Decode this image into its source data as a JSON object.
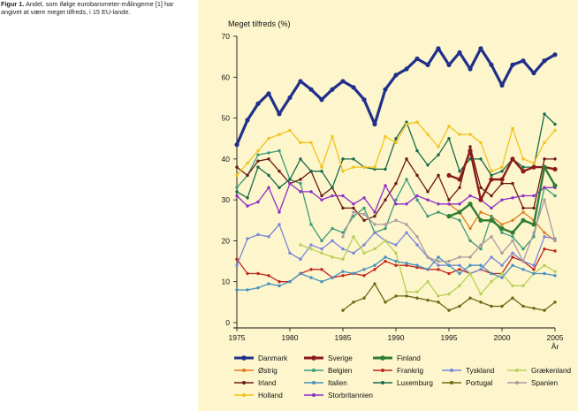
{
  "caption": {
    "label": "Figur 1.",
    "text": "Andel, som ifølge eurobarometer-målingerne [1] har angivet at være meget tilfreds, i 15 EU-lande."
  },
  "chart_data": {
    "type": "line",
    "ylabel": "Meget tilfreds (%)",
    "xlabel": "År",
    "ylim": [
      0,
      70
    ],
    "xlim": [
      1975,
      2005
    ],
    "yticks": [
      0,
      10,
      20,
      30,
      40,
      50,
      60,
      70
    ],
    "xticks": [
      1975,
      1980,
      1985,
      1990,
      1995,
      2000,
      2005
    ],
    "grid": false,
    "legend_position": "bottom",
    "series": [
      {
        "name": "Danmark",
        "color": "#1f2f8a",
        "width": 3.2,
        "x": [
          1975,
          1976,
          1977,
          1978,
          1979,
          1980,
          1981,
          1982,
          1983,
          1984,
          1985,
          1986,
          1987,
          1988,
          1989,
          1990,
          1991,
          1992,
          1993,
          1994,
          1995,
          1996,
          1997,
          1998,
          1999,
          2000,
          2001,
          2002,
          2003,
          2004,
          2005
        ],
        "values": [
          43.5,
          49.5,
          53.5,
          56,
          51,
          55,
          59,
          57,
          54.5,
          57,
          59,
          57.5,
          54.5,
          48.5,
          57,
          60.5,
          62,
          64.5,
          63,
          67,
          63,
          66,
          62,
          67,
          63,
          58,
          63,
          64,
          61,
          64,
          65.5
        ]
      },
      {
        "name": "Sverige",
        "color": "#8b1a1a",
        "width": 2.4,
        "x": [
          1995,
          1996,
          1997,
          1998,
          1999,
          2000,
          2001,
          2002,
          2003,
          2004,
          2005
        ],
        "values": [
          36,
          35,
          42,
          30,
          35,
          35,
          40,
          37,
          38,
          38,
          37.5
        ]
      },
      {
        "name": "Finland",
        "color": "#2e7d32",
        "width": 2.4,
        "x": [
          1995,
          1996,
          1997,
          1998,
          1999,
          2000,
          2001,
          2002,
          2003,
          2004,
          2005
        ],
        "values": [
          26,
          27,
          29,
          25,
          25,
          23,
          22,
          25,
          24,
          38,
          33.5
        ]
      },
      {
        "name": "Østrig",
        "color": "#e07b1f",
        "width": 1.3,
        "x": [
          1995,
          1996,
          1997,
          1998,
          1999,
          2000,
          2001,
          2002,
          2003,
          2004,
          2005
        ],
        "values": [
          29,
          27,
          23,
          27,
          26,
          24,
          25,
          27,
          25,
          22,
          20
        ]
      },
      {
        "name": "Belgien",
        "color": "#3e9a7a",
        "width": 1.3,
        "x": [
          1975,
          1976,
          1977,
          1978,
          1979,
          1980,
          1981,
          1982,
          1983,
          1984,
          1985,
          1986,
          1987,
          1988,
          1989,
          1990,
          1991,
          1992,
          1993,
          1994,
          1995,
          1996,
          1997,
          1998,
          1999,
          2000,
          2001,
          2002,
          2003,
          2004,
          2005
        ],
        "values": [
          33,
          36,
          41,
          41.5,
          42,
          35,
          34,
          24,
          20,
          23,
          22,
          26,
          28,
          22,
          23,
          30,
          35,
          30,
          26,
          27,
          26,
          25,
          20,
          18,
          26,
          22,
          21,
          18,
          21,
          33,
          31
        ]
      },
      {
        "name": "Frankrig",
        "color": "#c4271f",
        "width": 1.3,
        "x": [
          1975,
          1976,
          1977,
          1978,
          1979,
          1980,
          1981,
          1982,
          1983,
          1984,
          1985,
          1986,
          1987,
          1988,
          1989,
          1990,
          1991,
          1992,
          1993,
          1994,
          1995,
          1996,
          1997,
          1998,
          1999,
          2000,
          2001,
          2002,
          2003,
          2004,
          2005
        ],
        "values": [
          15.5,
          12,
          12,
          11.5,
          10,
          10,
          12,
          13,
          13,
          11,
          11.5,
          12,
          11.5,
          13,
          15,
          14,
          14,
          13.5,
          13,
          13,
          12,
          13,
          12,
          13,
          12,
          12,
          16,
          15,
          13,
          18,
          17.5
        ]
      },
      {
        "name": "Tyskland",
        "color": "#7b86d8",
        "width": 1.3,
        "x": [
          1975,
          1976,
          1977,
          1978,
          1979,
          1980,
          1981,
          1982,
          1983,
          1984,
          1985,
          1986,
          1987,
          1988,
          1989,
          1990,
          1991,
          1992,
          1993,
          1994,
          1995,
          1996,
          1997,
          1998,
          1999,
          2000,
          2001,
          2002,
          2003,
          2004,
          2005
        ],
        "values": [
          14,
          20.5,
          21.5,
          21,
          24,
          17,
          15.5,
          19,
          18,
          20,
          18,
          17,
          19,
          22,
          20,
          19,
          22,
          19,
          16,
          14,
          14,
          14,
          12,
          13,
          16,
          14,
          17,
          15,
          14,
          21,
          20.5
        ]
      },
      {
        "name": "Grækenland",
        "color": "#b9cf58",
        "width": 1.3,
        "x": [
          1981,
          1982,
          1983,
          1984,
          1985,
          1986,
          1987,
          1988,
          1989,
          1990,
          1991,
          1992,
          1993,
          1994,
          1995,
          1996,
          1997,
          1998,
          1999,
          2000,
          2001,
          2002,
          2003,
          2004,
          2005
        ],
        "values": [
          19,
          18,
          17,
          16,
          15.5,
          21,
          17,
          18,
          20,
          17,
          7.5,
          7.5,
          10,
          6.5,
          7,
          9,
          12,
          7,
          10,
          12,
          9,
          9,
          12,
          14,
          12.5
        ]
      },
      {
        "name": "Irland",
        "color": "#6a1a14",
        "width": 1.3,
        "x": [
          1975,
          1976,
          1977,
          1978,
          1979,
          1980,
          1981,
          1982,
          1983,
          1984,
          1985,
          1986,
          1987,
          1988,
          1989,
          1990,
          1991,
          1992,
          1993,
          1994,
          1995,
          1996,
          1997,
          1998,
          1999,
          2000,
          2001,
          2002,
          2003,
          2004,
          2005
        ],
        "values": [
          38,
          36,
          39.5,
          40,
          37,
          34,
          35,
          37,
          31,
          33,
          28,
          28,
          25,
          26,
          30,
          34,
          40,
          36,
          32,
          36,
          30,
          33,
          43,
          33,
          31,
          34,
          34,
          28,
          28,
          40,
          40
        ]
      },
      {
        "name": "Italien",
        "color": "#4a90c0",
        "width": 1.3,
        "x": [
          1975,
          1976,
          1977,
          1978,
          1979,
          1980,
          1981,
          1982,
          1983,
          1984,
          1985,
          1986,
          1987,
          1988,
          1989,
          1990,
          1991,
          1992,
          1993,
          1994,
          1995,
          1996,
          1997,
          1998,
          1999,
          2000,
          2001,
          2002,
          2003,
          2004,
          2005
        ],
        "values": [
          8,
          8,
          8.5,
          9.5,
          9,
          10,
          12,
          11,
          10,
          11,
          12.5,
          12,
          13,
          14,
          16,
          15,
          14.5,
          14,
          13,
          16,
          14,
          12,
          14,
          14,
          12,
          11,
          14,
          13,
          12,
          12,
          11.5
        ]
      },
      {
        "name": "Luxemburg",
        "color": "#176a4a",
        "width": 1.3,
        "x": [
          1975,
          1976,
          1977,
          1978,
          1979,
          1980,
          1981,
          1982,
          1983,
          1984,
          1985,
          1986,
          1987,
          1988,
          1989,
          1990,
          1991,
          1992,
          1993,
          1994,
          1995,
          1996,
          1997,
          1998,
          1999,
          2000,
          2001,
          2002,
          2003,
          2004,
          2005
        ],
        "values": [
          32,
          30.5,
          38,
          36,
          33,
          35,
          40,
          37,
          37,
          33,
          40,
          40,
          38,
          37.5,
          37.5,
          45,
          49,
          42,
          38.5,
          41,
          45,
          37,
          40,
          40,
          36,
          37,
          40,
          38,
          38,
          51,
          48.5
        ]
      },
      {
        "name": "Portugal",
        "color": "#6b6b12",
        "width": 1.3,
        "x": [
          1985,
          1986,
          1987,
          1988,
          1989,
          1990,
          1991,
          1992,
          1993,
          1994,
          1995,
          1996,
          1997,
          1998,
          1999,
          2000,
          2001,
          2002,
          2003,
          2004,
          2005
        ],
        "values": [
          3,
          5,
          6,
          9.5,
          5,
          6.5,
          6.5,
          6,
          5.5,
          5,
          3,
          4,
          6,
          5,
          4,
          4,
          6,
          4,
          3.5,
          3,
          5
        ]
      },
      {
        "name": "Spanien",
        "color": "#ad9a9e",
        "width": 1.3,
        "x": [
          1985,
          1986,
          1987,
          1988,
          1989,
          1990,
          1991,
          1992,
          1993,
          1994,
          1995,
          1996,
          1997,
          1998,
          1999,
          2000,
          2001,
          2002,
          2003,
          2004,
          2005
        ],
        "values": [
          21,
          27,
          26.5,
          24,
          24,
          25,
          24,
          21,
          16,
          15,
          15,
          16,
          16,
          19,
          21,
          17,
          20,
          15,
          22,
          30,
          20
        ]
      },
      {
        "name": "Holland",
        "color": "#f2c21d",
        "width": 1.3,
        "x": [
          1975,
          1976,
          1977,
          1978,
          1979,
          1980,
          1981,
          1982,
          1983,
          1984,
          1985,
          1986,
          1987,
          1988,
          1989,
          1990,
          1991,
          1992,
          1993,
          1994,
          1995,
          1996,
          1997,
          1998,
          1999,
          2000,
          2001,
          2002,
          2003,
          2004,
          2005
        ],
        "values": [
          36,
          39,
          42,
          45,
          46,
          47,
          44,
          44,
          38,
          45.5,
          37,
          38,
          38,
          38,
          45.5,
          44,
          48.5,
          49,
          46,
          43,
          48,
          46,
          46,
          44,
          37,
          38,
          47.5,
          40,
          39,
          44,
          47
        ]
      },
      {
        "name": "Storbritannien",
        "color": "#8e2fc8",
        "width": 1.3,
        "x": [
          1975,
          1976,
          1977,
          1978,
          1979,
          1980,
          1981,
          1982,
          1983,
          1984,
          1985,
          1986,
          1987,
          1988,
          1989,
          1990,
          1991,
          1992,
          1993,
          1994,
          1995,
          1996,
          1997,
          1998,
          1999,
          2000,
          2001,
          2002,
          2003,
          2004,
          2005
        ],
        "values": [
          31,
          28.5,
          29.5,
          33,
          27,
          34,
          32,
          32,
          30,
          31,
          31,
          29,
          30.5,
          27,
          33.5,
          29,
          29,
          31,
          30,
          29,
          29,
          29,
          31,
          30,
          28,
          30,
          30.5,
          31,
          31,
          33,
          33
        ]
      }
    ]
  }
}
